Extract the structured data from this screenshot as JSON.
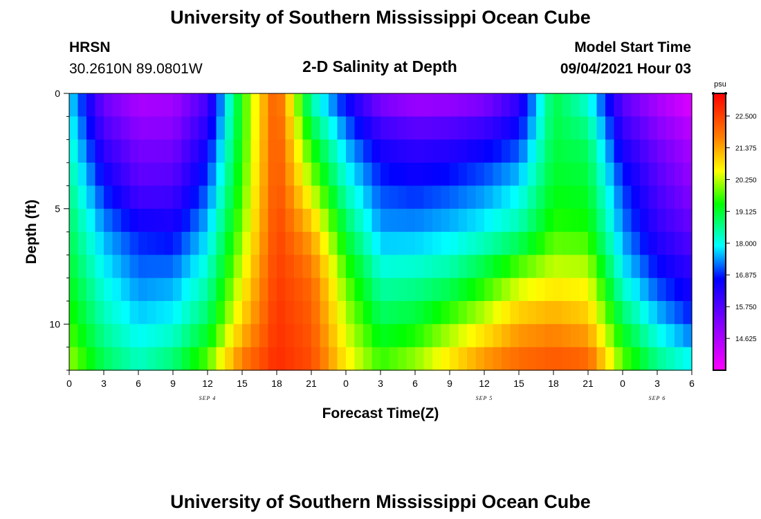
{
  "header": {
    "title": "University of Southern Mississippi Ocean Cube",
    "footer_title": "University of Southern Mississippi Ocean Cube",
    "station": "HRSN",
    "location": "30.2610N  89.0801W",
    "model_start_label": "Model Start Time",
    "model_start_value": "09/04/2021 Hour 03"
  },
  "chart_data": {
    "type": "heatmap",
    "title": "2-D Salinity at Depth",
    "xlabel": "Forecast Time(Z)",
    "ylabel": "Depth (ft)",
    "x_hours": [
      0,
      54
    ],
    "x_ticks": [
      {
        "h": 0,
        "label": "0"
      },
      {
        "h": 3,
        "label": "3"
      },
      {
        "h": 6,
        "label": "6"
      },
      {
        "h": 9,
        "label": "9"
      },
      {
        "h": 12,
        "label": "12"
      },
      {
        "h": 15,
        "label": "15"
      },
      {
        "h": 18,
        "label": "18"
      },
      {
        "h": 21,
        "label": "21"
      },
      {
        "h": 24,
        "label": "0"
      },
      {
        "h": 27,
        "label": "3"
      },
      {
        "h": 30,
        "label": "6"
      },
      {
        "h": 33,
        "label": "9"
      },
      {
        "h": 36,
        "label": "12"
      },
      {
        "h": 39,
        "label": "15"
      },
      {
        "h": 42,
        "label": "18"
      },
      {
        "h": 45,
        "label": "21"
      },
      {
        "h": 48,
        "label": "0"
      },
      {
        "h": 51,
        "label": "3"
      },
      {
        "h": 54,
        "label": "6"
      }
    ],
    "date_labels": [
      {
        "h": 12,
        "label": "SEP 4"
      },
      {
        "h": 36,
        "label": "SEP 5"
      },
      {
        "h": 51,
        "label": "SEP 6"
      }
    ],
    "y_range": [
      0,
      12
    ],
    "y_ticks": [
      {
        "v": 0,
        "label": "0"
      },
      {
        "v": 5,
        "label": "5"
      },
      {
        "v": 10,
        "label": "10"
      }
    ],
    "colorbar": {
      "unit": "psu",
      "min": 13.5,
      "max": 23.3,
      "labels": [
        "22.500",
        "21.375",
        "20.250",
        "19.125",
        "18.000",
        "16.875",
        "15.750",
        "14.625"
      ]
    },
    "time_hours": [
      0,
      3,
      6,
      9,
      12,
      15,
      18,
      21,
      24,
      27,
      30,
      33,
      36,
      39,
      42,
      45,
      48,
      51,
      54
    ],
    "depths_ft": [
      0,
      2,
      4,
      6,
      8,
      10,
      12
    ],
    "salinity_psu": [
      [
        17.8,
        15.3,
        14.5,
        14.6,
        15.8,
        19.5,
        22.3,
        18.2,
        16.5,
        15.0,
        14.5,
        14.6,
        14.9,
        16.0,
        19.0,
        18.0,
        15.5,
        14.5,
        13.8
      ],
      [
        18.2,
        16.0,
        15.2,
        15.2,
        16.5,
        19.5,
        22.4,
        19.3,
        17.5,
        16.3,
        16.0,
        16.1,
        16.4,
        16.9,
        19.0,
        18.8,
        16.3,
        15.3,
        14.6
      ],
      [
        18.6,
        16.8,
        15.7,
        15.8,
        17.1,
        19.7,
        22.4,
        20.2,
        18.2,
        17.0,
        16.8,
        17.0,
        17.3,
        17.8,
        19.2,
        19.1,
        17.0,
        15.8,
        15.0
      ],
      [
        18.9,
        17.5,
        16.8,
        16.6,
        17.7,
        20.0,
        22.5,
        21.3,
        19.0,
        17.5,
        17.5,
        17.7,
        18.0,
        18.5,
        19.6,
        19.5,
        17.4,
        16.2,
        15.6
      ],
      [
        19.2,
        18.0,
        17.3,
        17.4,
        18.3,
        20.5,
        22.6,
        22.0,
        19.8,
        18.3,
        18.4,
        18.6,
        19.3,
        20.1,
        20.5,
        20.4,
        18.0,
        16.9,
        16.3
      ],
      [
        19.6,
        18.4,
        17.8,
        18.0,
        18.9,
        21.0,
        22.7,
        22.2,
        20.3,
        19.0,
        19.2,
        19.9,
        20.5,
        21.3,
        21.5,
        21.2,
        19.0,
        17.8,
        17.0
      ],
      [
        20.2,
        19.0,
        18.4,
        18.9,
        20.0,
        22.0,
        22.8,
        22.4,
        20.8,
        19.8,
        20.3,
        21.0,
        21.8,
        22.2,
        22.4,
        22.3,
        20.0,
        18.8,
        18.2
      ]
    ]
  }
}
